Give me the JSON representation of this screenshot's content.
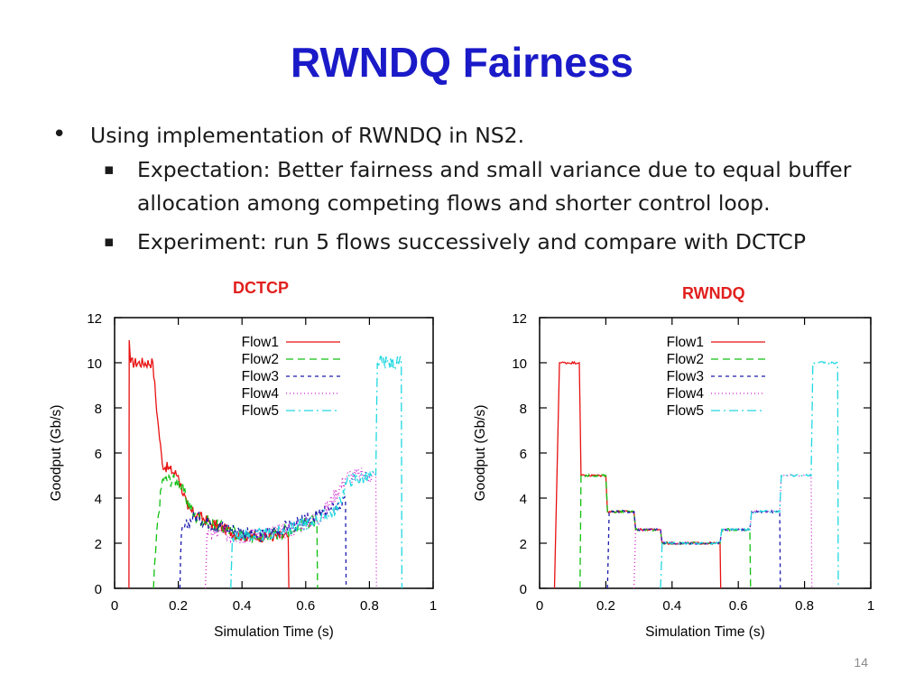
{
  "slide": {
    "title": "RWNDQ Fairness",
    "bullets": [
      "Using implementation of RWNDQ in NS2.",
      "Expectation: Better fairness and small variance due to equal buffer allocation among competing flows and shorter control loop.",
      "Experiment: run 5 flows successively and compare with DCTCP"
    ],
    "bullet_marker": "•",
    "sub_marker": "▪",
    "page_number": "14"
  },
  "colors": {
    "title": "#1a1ac8",
    "chart_title": "#e0201e",
    "Flow1": "#e81010",
    "Flow2": "#10c010",
    "Flow3": "#1a1ab0",
    "Flow4": "#d020d0",
    "Flow5": "#20d8e0"
  },
  "chart_data": [
    {
      "type": "line",
      "title": "DCTCP",
      "xlabel": "Simulation Time (s)",
      "ylabel": "Goodput (Gb/s)",
      "xlim": [
        0,
        1
      ],
      "ylim": [
        0,
        12
      ],
      "xticks": [
        "0",
        "0.2",
        "0.4",
        "0.6",
        "0.8",
        "1"
      ],
      "yticks": [
        "0",
        "2",
        "4",
        "6",
        "8",
        "10",
        "12"
      ],
      "legend_position": "top-center",
      "series": [
        {
          "name": "Flow1",
          "dash": "",
          "noise": 0.25,
          "points": [
            [
              0.045,
              0
            ],
            [
              0.046,
              11
            ],
            [
              0.05,
              10
            ],
            [
              0.12,
              10
            ],
            [
              0.135,
              7.5
            ],
            [
              0.15,
              5.5
            ],
            [
              0.2,
              5
            ],
            [
              0.23,
              3.5
            ],
            [
              0.3,
              2.9
            ],
            [
              0.4,
              2.3
            ],
            [
              0.5,
              2.3
            ],
            [
              0.545,
              2.3
            ],
            [
              0.547,
              0
            ]
          ]
        },
        {
          "name": "Flow2",
          "dash": "8,5",
          "noise": 0.3,
          "points": [
            [
              0.122,
              0
            ],
            [
              0.135,
              3
            ],
            [
              0.15,
              4.8
            ],
            [
              0.2,
              4.8
            ],
            [
              0.25,
              3.2
            ],
            [
              0.35,
              2.6
            ],
            [
              0.45,
              2.2
            ],
            [
              0.55,
              2.6
            ],
            [
              0.6,
              2.9
            ],
            [
              0.635,
              3
            ],
            [
              0.637,
              0
            ]
          ]
        },
        {
          "name": "Flow3",
          "dash": "4,4",
          "noise": 0.3,
          "points": [
            [
              0.205,
              0
            ],
            [
              0.21,
              2.5
            ],
            [
              0.25,
              3.2
            ],
            [
              0.3,
              2.9
            ],
            [
              0.45,
              2.3
            ],
            [
              0.6,
              3
            ],
            [
              0.68,
              3.5
            ],
            [
              0.725,
              3.8
            ],
            [
              0.727,
              0
            ]
          ]
        },
        {
          "name": "Flow4",
          "dash": "1,3",
          "noise": 0.35,
          "points": [
            [
              0.285,
              0
            ],
            [
              0.29,
              2.5
            ],
            [
              0.4,
              2.3
            ],
            [
              0.55,
              2.6
            ],
            [
              0.65,
              3.2
            ],
            [
              0.73,
              5
            ],
            [
              0.8,
              5
            ],
            [
              0.82,
              5
            ],
            [
              0.822,
              0
            ]
          ]
        },
        {
          "name": "Flow5",
          "dash": "10,4,2,4",
          "noise": 0.3,
          "points": [
            [
              0.365,
              0
            ],
            [
              0.37,
              2.3
            ],
            [
              0.5,
              2.4
            ],
            [
              0.63,
              3
            ],
            [
              0.7,
              3.5
            ],
            [
              0.73,
              4.8
            ],
            [
              0.82,
              5
            ],
            [
              0.825,
              10
            ],
            [
              0.9,
              10
            ],
            [
              0.902,
              0
            ]
          ]
        }
      ]
    },
    {
      "type": "line",
      "title": "RWNDQ",
      "xlabel": "Simulation Time (s)",
      "ylabel": "Goodput (Gb/s)",
      "xlim": [
        0,
        1
      ],
      "ylim": [
        0,
        12
      ],
      "xticks": [
        "0",
        "0.2",
        "0.4",
        "0.6",
        "0.8",
        "1"
      ],
      "yticks": [
        "0",
        "2",
        "4",
        "6",
        "8",
        "10",
        "12"
      ],
      "legend_position": "top-center",
      "series": [
        {
          "name": "Flow1",
          "dash": "",
          "noise": 0.05,
          "points": [
            [
              0.045,
              0
            ],
            [
              0.06,
              10
            ],
            [
              0.12,
              10
            ],
            [
              0.125,
              5
            ],
            [
              0.2,
              5
            ],
            [
              0.205,
              3.4
            ],
            [
              0.285,
              3.4
            ],
            [
              0.29,
              2.6
            ],
            [
              0.365,
              2.6
            ],
            [
              0.37,
              2
            ],
            [
              0.545,
              2
            ],
            [
              0.547,
              0
            ]
          ]
        },
        {
          "name": "Flow2",
          "dash": "8,5",
          "noise": 0.05,
          "points": [
            [
              0.122,
              0
            ],
            [
              0.125,
              5
            ],
            [
              0.2,
              5
            ],
            [
              0.205,
              3.4
            ],
            [
              0.285,
              3.4
            ],
            [
              0.29,
              2.6
            ],
            [
              0.365,
              2.6
            ],
            [
              0.37,
              2
            ],
            [
              0.545,
              2
            ],
            [
              0.55,
              2.6
            ],
            [
              0.635,
              2.6
            ],
            [
              0.637,
              0
            ]
          ]
        },
        {
          "name": "Flow3",
          "dash": "4,4",
          "noise": 0.05,
          "points": [
            [
              0.205,
              0
            ],
            [
              0.21,
              3.4
            ],
            [
              0.285,
              3.4
            ],
            [
              0.29,
              2.6
            ],
            [
              0.365,
              2.6
            ],
            [
              0.37,
              2
            ],
            [
              0.545,
              2
            ],
            [
              0.55,
              2.6
            ],
            [
              0.635,
              2.6
            ],
            [
              0.64,
              3.4
            ],
            [
              0.725,
              3.4
            ],
            [
              0.727,
              0
            ]
          ]
        },
        {
          "name": "Flow4",
          "dash": "1,3",
          "noise": 0.05,
          "points": [
            [
              0.285,
              0
            ],
            [
              0.29,
              2.6
            ],
            [
              0.365,
              2.6
            ],
            [
              0.37,
              2
            ],
            [
              0.545,
              2
            ],
            [
              0.55,
              2.6
            ],
            [
              0.635,
              2.6
            ],
            [
              0.64,
              3.4
            ],
            [
              0.725,
              3.4
            ],
            [
              0.73,
              5
            ],
            [
              0.82,
              5
            ],
            [
              0.822,
              0
            ]
          ]
        },
        {
          "name": "Flow5",
          "dash": "10,4,2,4",
          "noise": 0.05,
          "points": [
            [
              0.365,
              0
            ],
            [
              0.37,
              2
            ],
            [
              0.545,
              2
            ],
            [
              0.55,
              2.6
            ],
            [
              0.635,
              2.6
            ],
            [
              0.64,
              3.4
            ],
            [
              0.725,
              3.4
            ],
            [
              0.73,
              5
            ],
            [
              0.82,
              5
            ],
            [
              0.825,
              10
            ],
            [
              0.9,
              10
            ],
            [
              0.902,
              0
            ]
          ]
        }
      ]
    }
  ]
}
